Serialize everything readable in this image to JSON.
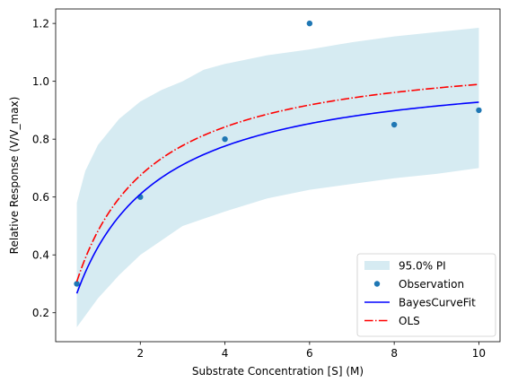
{
  "chart_data": {
    "type": "line",
    "title": "",
    "xlabel": "Substrate Concentration [S] (M)",
    "ylabel": "Relative Response (V/V_max)",
    "xlim": [
      0.0,
      10.5
    ],
    "ylim": [
      0.1,
      1.25
    ],
    "xticks": [
      2,
      4,
      6,
      8,
      10
    ],
    "xtick_labels": [
      "2",
      "4",
      "6",
      "8",
      "10"
    ],
    "yticks": [
      0.2,
      0.4,
      0.6,
      0.8,
      1.0,
      1.2
    ],
    "ytick_labels": [
      "0.2",
      "0.4",
      "0.6",
      "0.8",
      "1.0",
      "1.2"
    ],
    "grid": false,
    "legend_position": "lower-right",
    "series": [
      {
        "name": "95.0% PI",
        "kind": "band",
        "color": "#add8e6",
        "x": [
          0.5,
          0.7,
          1.0,
          1.5,
          2.0,
          2.5,
          3.0,
          3.5,
          4.0,
          5.0,
          6.0,
          7.0,
          8.0,
          9.0,
          10.0
        ],
        "lower": [
          0.15,
          0.19,
          0.25,
          0.33,
          0.4,
          0.45,
          0.5,
          0.525,
          0.55,
          0.595,
          0.625,
          0.645,
          0.665,
          0.68,
          0.7
        ],
        "upper": [
          0.58,
          0.69,
          0.78,
          0.87,
          0.93,
          0.97,
          1.0,
          1.04,
          1.06,
          1.09,
          1.11,
          1.135,
          1.155,
          1.17,
          1.185
        ]
      },
      {
        "name": "Observation",
        "kind": "scatter",
        "color": "#1f77b4",
        "x": [
          0.5,
          2.0,
          4.0,
          6.0,
          8.0,
          10.0
        ],
        "y": [
          0.3,
          0.6,
          0.8,
          1.2,
          0.85,
          0.9
        ]
      },
      {
        "name": "BayesCurveFit",
        "kind": "line",
        "color": "#0000ff",
        "vmax": 1.067,
        "km": 1.5,
        "x": [
          0.5,
          0.6,
          0.8,
          1.0,
          1.25,
          1.5,
          1.75,
          2.0,
          2.5,
          3.0,
          3.5,
          4.0,
          4.5,
          5.0,
          5.5,
          6.0,
          6.5,
          7.0,
          7.5,
          8.0,
          8.5,
          9.0,
          9.5,
          10.0
        ],
        "y": [
          0.267,
          0.305,
          0.371,
          0.427,
          0.485,
          0.534,
          0.575,
          0.61,
          0.667,
          0.711,
          0.747,
          0.776,
          0.8,
          0.821,
          0.838,
          0.854,
          0.867,
          0.879,
          0.889,
          0.899,
          0.907,
          0.915,
          0.922,
          0.928
        ]
      },
      {
        "name": "OLS",
        "kind": "line",
        "style": "dash-dot",
        "color": "#ff0000",
        "vmax": 1.12,
        "km": 1.32,
        "x": [
          0.5,
          0.6,
          0.8,
          1.0,
          1.25,
          1.5,
          1.75,
          2.0,
          2.5,
          3.0,
          3.5,
          4.0,
          4.5,
          5.0,
          5.5,
          6.0,
          6.5,
          7.0,
          7.5,
          8.0,
          8.5,
          9.0,
          9.5,
          10.0
        ],
        "y": [
          0.308,
          0.35,
          0.423,
          0.483,
          0.544,
          0.596,
          0.638,
          0.675,
          0.733,
          0.778,
          0.813,
          0.842,
          0.866,
          0.886,
          0.903,
          0.918,
          0.931,
          0.942,
          0.952,
          0.961,
          0.969,
          0.976,
          0.983,
          0.989
        ]
      }
    ]
  }
}
